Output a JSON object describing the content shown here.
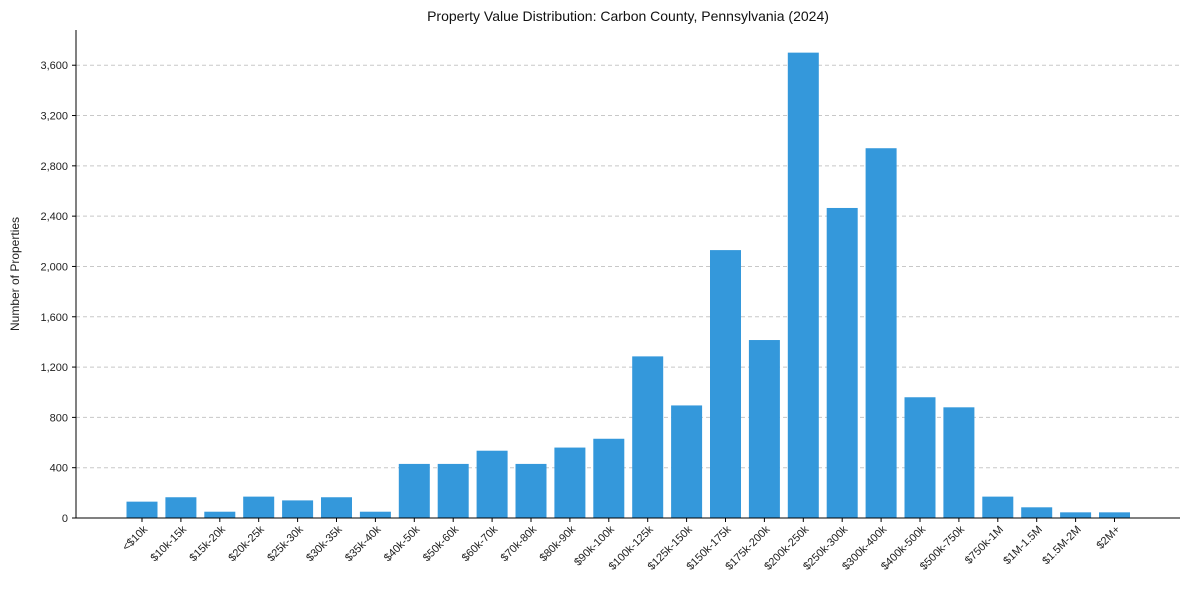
{
  "chart_data": {
    "type": "bar",
    "title": "Property Value Distribution: Carbon County, Pennsylvania (2024)",
    "xlabel": "",
    "ylabel": "Number of Properties",
    "categories": [
      "<$10k",
      "$10k-15k",
      "$15k-20k",
      "$20k-25k",
      "$25k-30k",
      "$30k-35k",
      "$35k-40k",
      "$40k-50k",
      "$50k-60k",
      "$60k-70k",
      "$70k-80k",
      "$80k-90k",
      "$90k-100k",
      "$100k-125k",
      "$125k-150k",
      "$150k-175k",
      "$175k-200k",
      "$200k-250k",
      "$250k-300k",
      "$300k-400k",
      "$400k-500k",
      "$500k-750k",
      "$750k-1M",
      "$1M-1.5M",
      "$1.5M-2M",
      "$2M+"
    ],
    "values": [
      130,
      165,
      50,
      170,
      140,
      165,
      50,
      430,
      430,
      535,
      430,
      560,
      630,
      1285,
      895,
      2130,
      1415,
      3700,
      2465,
      2940,
      960,
      880,
      170,
      85,
      45,
      45
    ],
    "ylim": [
      0,
      3880
    ],
    "yticks": [
      0,
      400,
      800,
      1200,
      1600,
      2000,
      2400,
      2800,
      3200,
      3600
    ],
    "ytick_labels": [
      "0",
      "400",
      "800",
      "1,200",
      "1,600",
      "2,000",
      "2,400",
      "2,800",
      "3,200",
      "3,600"
    ],
    "grid": true,
    "bar_color": "#3498db"
  }
}
